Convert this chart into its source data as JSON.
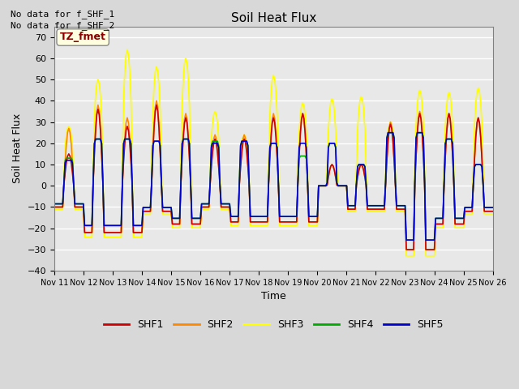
{
  "title": "Soil Heat Flux",
  "ylabel": "Soil Heat Flux",
  "xlabel": "Time",
  "annotations": [
    "No data for f_SHF_1",
    "No data for f_SHF_2"
  ],
  "tz_label": "TZ_fmet",
  "xlim_days": [
    11.0,
    26.0
  ],
  "ylim": [
    -40,
    75
  ],
  "yticks": [
    -40,
    -30,
    -20,
    -10,
    0,
    10,
    20,
    30,
    40,
    50,
    60,
    70
  ],
  "xtick_labels": [
    "Nov 11",
    "Nov 12",
    "Nov 13",
    "Nov 14",
    "Nov 15",
    "Nov 16",
    "Nov 17",
    "Nov 18",
    "Nov 19",
    "Nov 20",
    "Nov 21",
    "Nov 22",
    "Nov 23",
    "Nov 24",
    "Nov 25",
    "Nov 26"
  ],
  "background_color": "#d8d8d8",
  "plot_bg_color": "#d8d8d8",
  "grid_color": "#bbbbbb",
  "legend": [
    {
      "label": "SHF1",
      "color": "#cc0000"
    },
    {
      "label": "SHF2",
      "color": "#ff8800"
    },
    {
      "label": "SHF3",
      "color": "#ffff00"
    },
    {
      "label": "SHF4",
      "color": "#00aa00"
    },
    {
      "label": "SHF5",
      "color": "#0000cc"
    }
  ],
  "series_order": [
    "SHF3",
    "SHF2",
    "SHF1",
    "SHF4",
    "SHF5"
  ],
  "series": {
    "SHF1": {
      "color": "#cc0000"
    },
    "SHF2": {
      "color": "#ff8800"
    },
    "SHF3": {
      "color": "#ffff00"
    },
    "SHF4": {
      "color": "#00aa00"
    },
    "SHF5": {
      "color": "#0000cc"
    }
  }
}
